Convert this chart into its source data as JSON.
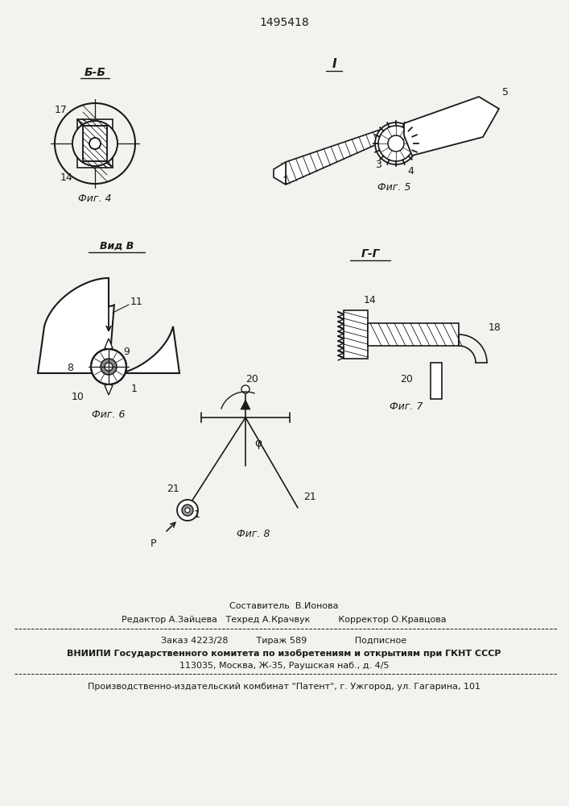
{
  "patent_number": "1495418",
  "background_color": "#f2f2ee",
  "line_color": "#1a1a1a",
  "footer": {
    "composer": "Составитель  В.Ионова",
    "editor_line": "Редактор А.Зайцева   Техред А.Крачвук          Корректор О.Кравцова",
    "order_line": "Заказ 4223/28          Тираж 589                 Подписное",
    "vniip_line1": "ВНИИПИ Государственного комитета по изобретениям и открытиям при ГКНТ СССР",
    "vniip_line2": "113035, Москва, Ж-35, Раушская наб., д. 4/5",
    "factory_line": "Производственно-издательский комбинат \"Патент\", г. Ужгород, ул. Гагарина, 101"
  }
}
